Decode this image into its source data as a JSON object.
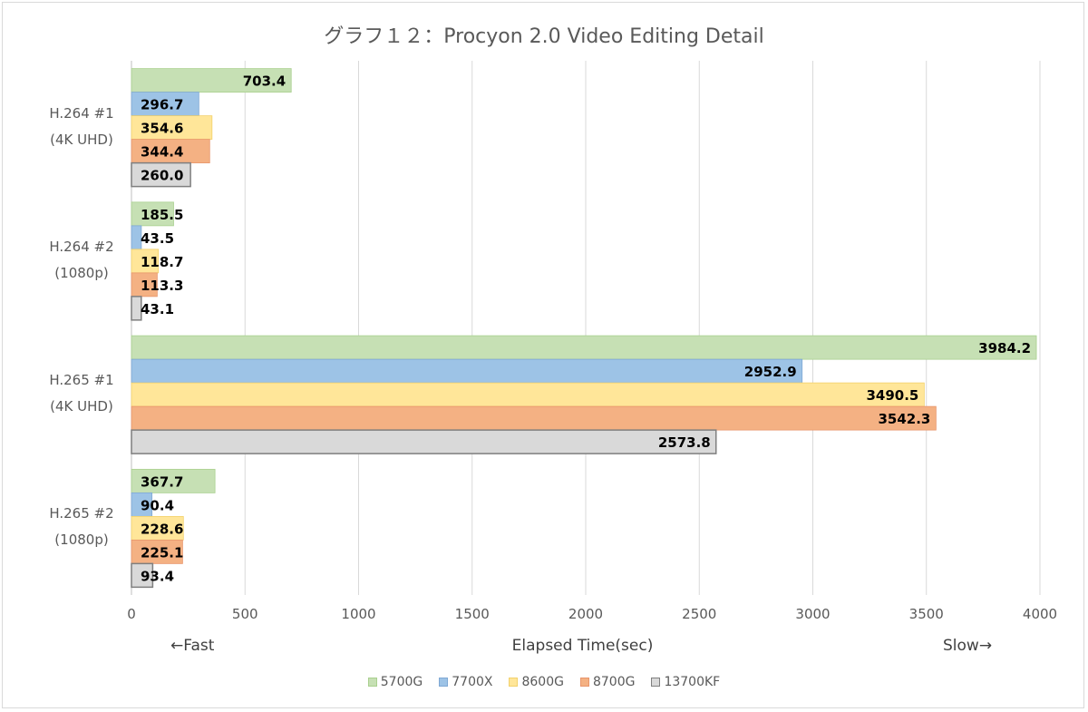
{
  "chart_data": {
    "type": "bar",
    "orientation": "horizontal",
    "title": "グラフ１２：Procyon 2.0 Video Editing Detail",
    "xlabel": "Elapsed Time(sec)",
    "xlim": [
      0,
      4000
    ],
    "xticks": [
      0,
      500,
      1000,
      1500,
      2000,
      2500,
      3000,
      3500,
      4000
    ],
    "grid": true,
    "legend_position": "bottom",
    "annotation_left": "←Fast",
    "annotation_right": "Slow→",
    "categories": [
      {
        "line1": "H.264 #1",
        "line2": "(4K UHD)"
      },
      {
        "line1": "H.264 #2",
        "line2": "(1080p)"
      },
      {
        "line1": "H.265 #1",
        "line2": "(4K UHD)"
      },
      {
        "line1": "H.265 #2",
        "line2": "(1080p)"
      }
    ],
    "series": [
      {
        "name": "5700G",
        "color": "#c6e0b4",
        "border": "#a9d08e",
        "values": [
          703.4,
          185.5,
          3984.2,
          367.7
        ]
      },
      {
        "name": "7700X",
        "color": "#9dc3e6",
        "border": "#7fa8d4",
        "values": [
          296.7,
          43.5,
          2952.9,
          90.4
        ]
      },
      {
        "name": "8600G",
        "color": "#ffe699",
        "border": "#f2d16b",
        "values": [
          354.6,
          118.7,
          3490.5,
          228.6
        ]
      },
      {
        "name": "8700G",
        "color": "#f4b183",
        "border": "#e8956b",
        "values": [
          344.4,
          113.3,
          3542.3,
          225.1
        ]
      },
      {
        "name": "13700KF",
        "color": "#d9d9d9",
        "border": "#7f7f7f",
        "values": [
          260.0,
          43.1,
          2573.8,
          93.4
        ]
      }
    ]
  }
}
